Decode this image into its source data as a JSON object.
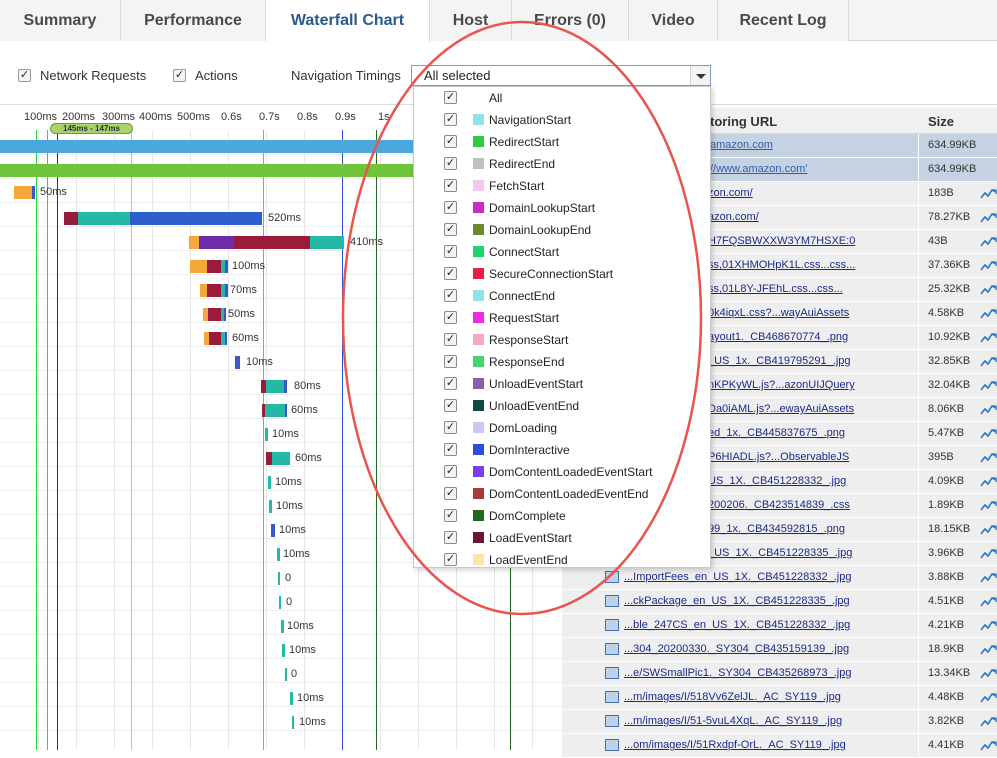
{
  "tabs": [
    {
      "label": "Summary"
    },
    {
      "label": "Performance"
    },
    {
      "label": "Waterfall Chart"
    },
    {
      "label": "Host"
    },
    {
      "label": "Errors (0)"
    },
    {
      "label": "Video"
    },
    {
      "label": "Recent Log"
    }
  ],
  "active_tab": "Waterfall Chart",
  "controls": {
    "network_requests_label": "Network Requests",
    "actions_label": "Actions",
    "navigation_timings_label": "Navigation Timings",
    "navigation_timings_value": "All selected",
    "checked_glyph": "✓"
  },
  "ticks": [
    "100ms",
    "200ms",
    "300ms",
    "400ms",
    "500ms",
    "0.6s",
    "0.7s",
    "0.8s",
    "0.9s",
    "1s"
  ],
  "marker_label": "145ms - 147ms",
  "dropdown_options": [
    {
      "label": "All",
      "color": ""
    },
    {
      "label": "NavigationStart",
      "color": "#8fe3e8"
    },
    {
      "label": "RedirectStart",
      "color": "#2ecc40"
    },
    {
      "label": "RedirectEnd",
      "color": "#c0c0c0"
    },
    {
      "label": "FetchStart",
      "color": "#f4c8ee"
    },
    {
      "label": "DomainLookupStart",
      "color": "#c92fbe"
    },
    {
      "label": "DomainLookupEnd",
      "color": "#6c8a2a"
    },
    {
      "label": "ConnectStart",
      "color": "#1fd36e"
    },
    {
      "label": "SecureConnectionStart",
      "color": "#e81e4c"
    },
    {
      "label": "ConnectEnd",
      "color": "#8fe3e8"
    },
    {
      "label": "RequestStart",
      "color": "#f02ce0"
    },
    {
      "label": "ResponseStart",
      "color": "#f3a8c6"
    },
    {
      "label": "ResponseEnd",
      "color": "#49d36e"
    },
    {
      "label": "UnloadEventStart",
      "color": "#8b5fa8"
    },
    {
      "label": "UnloadEventEnd",
      "color": "#114a45"
    },
    {
      "label": "DomLoading",
      "color": "#d1c6f0"
    },
    {
      "label": "DomInteractive",
      "color": "#2c4ee0"
    },
    {
      "label": "DomContentLoadedEventStart",
      "color": "#7a3ee8"
    },
    {
      "label": "DomContentLoadedEventEnd",
      "color": "#a83a3a"
    },
    {
      "label": "DomComplete",
      "color": "#1e6a1e"
    },
    {
      "label": "LoadEventStart",
      "color": "#6a1438"
    },
    {
      "label": "LoadEventEnd",
      "color": "#f7e6a8"
    }
  ],
  "table": {
    "url_header": "toring URL",
    "size_header": "Size",
    "rows": [
      {
        "url": "amazon.com",
        "size": "634.99KB"
      },
      {
        "url": "//www.amazon.com'",
        "size": "634.99KB"
      },
      {
        "url": "zon.com/",
        "size": "183B"
      },
      {
        "url": "azon.com/",
        "size": "78.27KB"
      },
      {
        "url": "H7FQSBWXXW3YM7HSXE:0",
        "size": "43B"
      },
      {
        "url": "ss,01XHMOHpK1L.css...css...",
        "size": "37.36KB"
      },
      {
        "url": "ss,01L8Y-JFEhL.css...css...",
        "size": "25.32KB"
      },
      {
        "url": "0k4iqxL.css?...wayAuiAssets",
        "size": "4.58KB"
      },
      {
        "url": "ayout1._CB468670774_.png",
        "size": "10.92KB"
      },
      {
        "url": "_US_1x._CB419795291_.jpg",
        "size": "32.85KB"
      },
      {
        "url": "nKPKyWL.js?...azonUIJQuery",
        "size": "32.04KB"
      },
      {
        "url": "Da0iAML.js?...ewayAuiAssets",
        "size": "8.06KB"
      },
      {
        "url": "ed_1x._CB445837675_.png",
        "size": "5.47KB"
      },
      {
        "url": "P6HIADL.js?...ObservableJS",
        "size": "395B"
      },
      {
        "url": "US_1X._CB451228332_.jpg",
        "size": "4.09KB"
      },
      {
        "url": "200206._CB423514839_.css",
        "size": "1.89KB"
      },
      {
        "url": "99_1x._CB434592815_.png",
        "size": "18.15KB"
      },
      {
        "url": "_US_1X._CB451228335_.jpg",
        "size": "3.96KB"
      },
      {
        "url": "...ImportFees_en_US_1X._CB451228332_.jpg",
        "size": "3.88KB"
      },
      {
        "url": "...ckPackage_en_US_1X._CB451228335_.jpg",
        "size": "4.51KB"
      },
      {
        "url": "...ble_247CS_en_US_1X._CB451228332_.jpg",
        "size": "4.21KB"
      },
      {
        "url": "...304_20200330._SY304_CB435159139_.jpg",
        "size": "18.9KB"
      },
      {
        "url": "...e/SWSmallPic1._SY304_CB435268973_.jpg",
        "size": "13.34KB"
      },
      {
        "url": "...m/images/I/518Vv6ZelJL._AC_SY119_.jpg",
        "size": "4.48KB"
      },
      {
        "url": "...m/images/I/51-5vuL4XqL._AC_SY119_.jpg",
        "size": "3.82KB"
      },
      {
        "url": "...om/images/I/51Rxdpf-OrL._AC_SY119_.jpg",
        "size": "4.41KB"
      }
    ]
  },
  "waterfall_rows": [
    {
      "label": "50ms"
    },
    {
      "label": "520ms"
    },
    {
      "label": "410ms"
    },
    {
      "label": "100ms"
    },
    {
      "label": "70ms"
    },
    {
      "label": "50ms"
    },
    {
      "label": "60ms"
    },
    {
      "label": "10ms"
    },
    {
      "label": "80ms"
    },
    {
      "label": "60ms"
    },
    {
      "label": "10ms"
    },
    {
      "label": "60ms"
    },
    {
      "label": "10ms"
    },
    {
      "label": "10ms"
    },
    {
      "label": "10ms"
    },
    {
      "label": "10ms"
    },
    {
      "label": "0"
    },
    {
      "label": "0"
    },
    {
      "label": "10ms"
    },
    {
      "label": "10ms"
    },
    {
      "label": "0"
    },
    {
      "label": "10ms"
    },
    {
      "label": "10ms"
    }
  ]
}
